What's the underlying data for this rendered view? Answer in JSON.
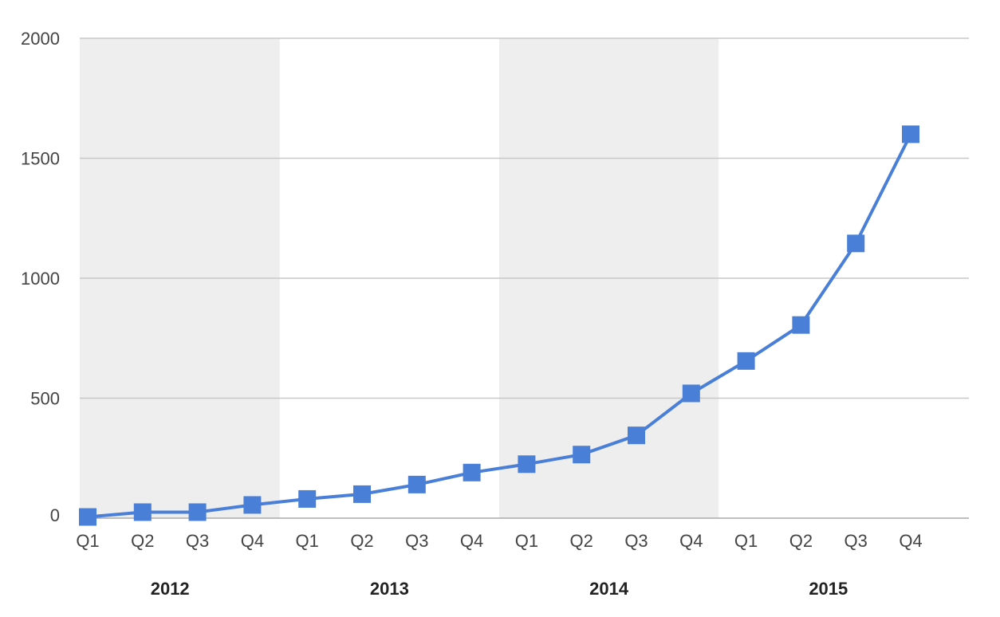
{
  "chart_data": {
    "type": "line",
    "title": "",
    "xlabel": "",
    "ylabel": "",
    "ylim": [
      0,
      2000
    ],
    "yticks": [
      0,
      500,
      1000,
      1500,
      2000
    ],
    "grid": true,
    "legend": "none",
    "categories": [
      "Q1",
      "Q2",
      "Q3",
      "Q4",
      "Q1",
      "Q2",
      "Q3",
      "Q4",
      "Q1",
      "Q2",
      "Q3",
      "Q4",
      "Q1",
      "Q2",
      "Q3",
      "Q4"
    ],
    "year_groups": [
      {
        "label": "2012",
        "shaded": true
      },
      {
        "label": "2013",
        "shaded": false
      },
      {
        "label": "2014",
        "shaded": true
      },
      {
        "label": "2015",
        "shaded": false
      }
    ],
    "series": [
      {
        "values": [
          5,
          25,
          25,
          55,
          80,
          100,
          140,
          190,
          225,
          265,
          345,
          520,
          655,
          805,
          1145,
          1600
        ],
        "color": "#4a7fd8"
      }
    ]
  }
}
